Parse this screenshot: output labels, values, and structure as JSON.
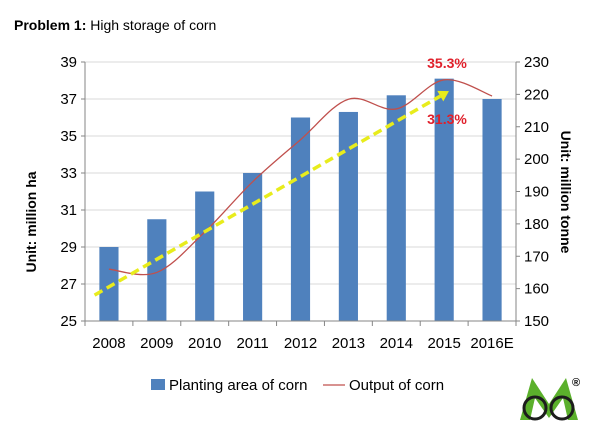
{
  "header": {
    "title_bold": "Problem 1:",
    "title_rest": " High storage of corn"
  },
  "chart_data": {
    "type": "bar",
    "categories": [
      "2008",
      "2009",
      "2010",
      "2011",
      "2012",
      "2013",
      "2014",
      "2015",
      "2016E"
    ],
    "series": [
      {
        "name": "Planting area of corn",
        "axis": "left",
        "kind": "bar",
        "color": "#4f81bd",
        "values": [
          29.0,
          30.5,
          32.0,
          33.0,
          36.0,
          36.3,
          37.2,
          38.1,
          37.0
        ]
      },
      {
        "name": "Output of corn",
        "axis": "right",
        "kind": "line",
        "color": "#c0504d",
        "values": [
          166.0,
          165.0,
          177.5,
          193.0,
          206.0,
          218.5,
          215.5,
          224.5,
          219.5
        ]
      }
    ],
    "trend": {
      "color": "#e8ec1c",
      "from": {
        "category": "2008",
        "value": 158.0
      },
      "to": {
        "category": "2015",
        "value": 221.0
      }
    },
    "ylabel": "Unit: million ha",
    "ylabel_right": "Unit: million tonne",
    "ylim": [
      25,
      39
    ],
    "yticks": [
      "25",
      "27",
      "29",
      "31",
      "33",
      "35",
      "37",
      "39"
    ],
    "ylim_right": [
      150,
      230
    ],
    "yticks_right": [
      "150",
      "160",
      "170",
      "180",
      "190",
      "200",
      "210",
      "220",
      "230"
    ],
    "grid": true,
    "legend": "bottom",
    "annotations": [
      "35.3%",
      "31.3%"
    ]
  },
  "logo": {
    "mark": "®"
  }
}
